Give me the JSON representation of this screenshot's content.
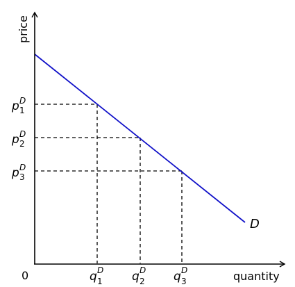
{
  "axes": {
    "y_label": "price",
    "x_label": "quantity",
    "origin_label": "0"
  },
  "curve": {
    "label": "D",
    "color": "#1010c8"
  },
  "price_labels": [
    {
      "base": "p",
      "sub": "1",
      "sup": "D"
    },
    {
      "base": "p",
      "sub": "2",
      "sup": "D"
    },
    {
      "base": "p",
      "sub": "3",
      "sup": "D"
    }
  ],
  "quantity_labels": [
    {
      "base": "q",
      "sub": "1",
      "sup": "D"
    },
    {
      "base": "q",
      "sub": "2",
      "sup": "D"
    },
    {
      "base": "q",
      "sub": "3",
      "sup": "D"
    }
  ]
}
